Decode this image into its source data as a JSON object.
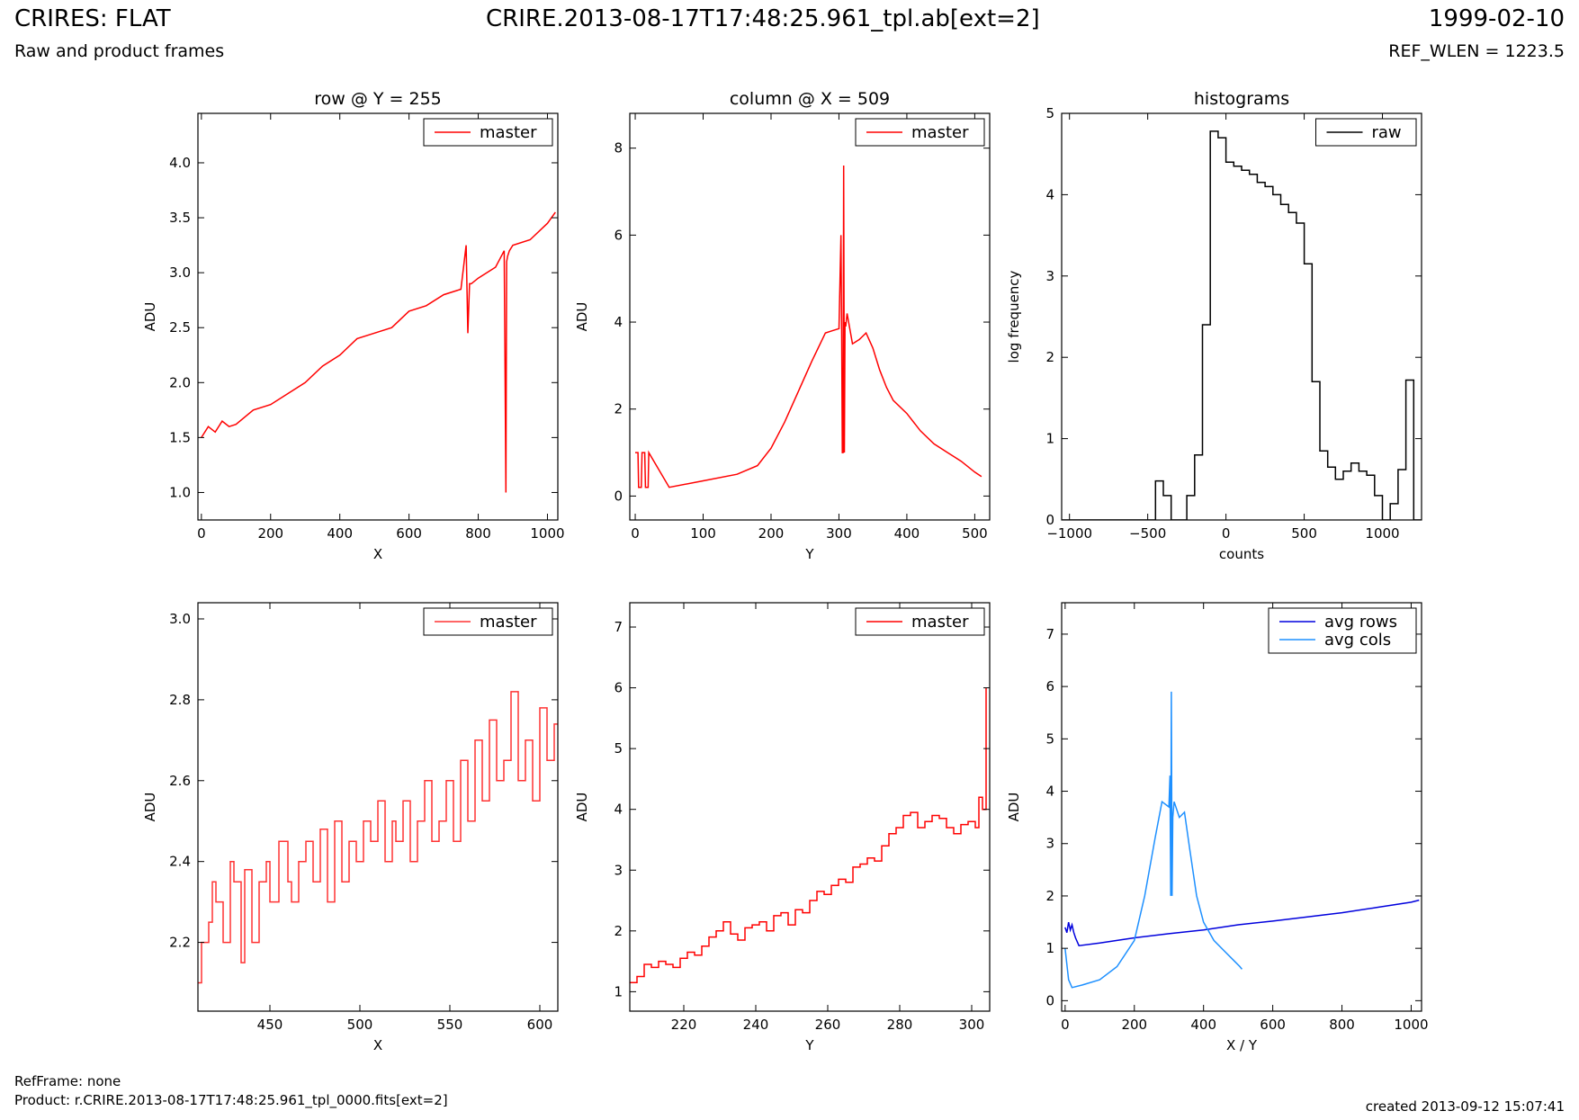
{
  "header": {
    "title": "CRIRES: FLAT",
    "subtitle": "Raw and product frames",
    "file": "CRIRE.2013-08-17T17:48:25.961_tpl.ab[ext=2]",
    "date": "1999-02-10",
    "ref_wlen": "REF_WLEN = 1223.5"
  },
  "footer": {
    "refframe": "RefFrame: none",
    "product": "Product: r.CRIRE.2013-08-17T17:48:25.961_tpl_0000.fits[ext=2]",
    "created": "created 2013-09-12 15:07:41"
  },
  "colors": {
    "master": "#ff0000",
    "master_zoom": "#ff3333",
    "raw": "#000000",
    "avg_rows": "#0000dd",
    "avg_cols": "#1e90ff"
  },
  "chart_data": [
    {
      "type": "line",
      "title": "row @ Y = 255",
      "xlabel": "X",
      "ylabel": "ADU",
      "xlim": [
        -10,
        1030
      ],
      "ylim": [
        0.75,
        4.45
      ],
      "xticks": [
        0,
        200,
        400,
        600,
        800,
        1000
      ],
      "yticks": [
        1.0,
        1.5,
        2.0,
        2.5,
        3.0,
        3.5,
        4.0
      ],
      "ytick_labels": [
        "1.0",
        "1.5",
        "2.0",
        "2.5",
        "3.0",
        "3.5",
        "4.0"
      ],
      "legend": "top-right",
      "series": [
        {
          "name": "master",
          "color": "#ff0000",
          "x": [
            0,
            20,
            40,
            60,
            80,
            100,
            150,
            200,
            250,
            300,
            350,
            400,
            450,
            500,
            550,
            600,
            650,
            700,
            750,
            765,
            770,
            775,
            780,
            800,
            850,
            875,
            880,
            882,
            885,
            890,
            900,
            950,
            1000,
            1023
          ],
          "y": [
            1.5,
            1.6,
            1.55,
            1.65,
            1.6,
            1.62,
            1.75,
            1.8,
            1.9,
            2.0,
            2.15,
            2.25,
            2.4,
            2.45,
            2.5,
            2.65,
            2.7,
            2.8,
            2.85,
            3.25,
            2.45,
            2.9,
            2.9,
            2.95,
            3.05,
            3.2,
            1.0,
            3.1,
            3.15,
            3.2,
            3.25,
            3.3,
            3.45,
            3.55
          ]
        }
      ]
    },
    {
      "type": "line",
      "title": "column @ X = 509",
      "xlabel": "Y",
      "ylabel": "ADU",
      "xlim": [
        -8,
        522
      ],
      "ylim": [
        -0.55,
        8.8
      ],
      "xticks": [
        0,
        100,
        200,
        300,
        400,
        500
      ],
      "yticks": [
        0,
        2,
        4,
        6,
        8
      ],
      "ytick_labels": [
        "0",
        "2",
        "4",
        "6",
        "8"
      ],
      "legend": "top-right",
      "series": [
        {
          "name": "master",
          "color": "#ff0000",
          "x": [
            0,
            4,
            5,
            9,
            10,
            14,
            15,
            19,
            20,
            50,
            100,
            150,
            180,
            200,
            220,
            240,
            260,
            280,
            290,
            300,
            303,
            304,
            305,
            306,
            307,
            308,
            309,
            310,
            312,
            320,
            330,
            340,
            350,
            360,
            370,
            380,
            400,
            420,
            440,
            460,
            480,
            500,
            510
          ],
          "y": [
            1.0,
            1.0,
            0.2,
            0.2,
            1.0,
            1.0,
            0.2,
            0.2,
            1.0,
            0.2,
            0.35,
            0.5,
            0.7,
            1.1,
            1.7,
            2.4,
            3.1,
            3.75,
            3.8,
            3.85,
            6.0,
            3.7,
            1.0,
            1.0,
            7.6,
            1.0,
            4.0,
            3.9,
            4.2,
            3.5,
            3.6,
            3.75,
            3.4,
            2.9,
            2.5,
            2.2,
            1.9,
            1.5,
            1.2,
            1.0,
            0.8,
            0.55,
            0.45
          ]
        }
      ]
    },
    {
      "type": "line",
      "title": "histograms",
      "xlabel": "counts",
      "ylabel": "log frequency",
      "xlim": [
        -1050,
        1250
      ],
      "ylim": [
        0,
        5
      ],
      "xticks": [
        -1000,
        -500,
        0,
        500,
        1000
      ],
      "xtick_labels": [
        "−1000",
        "−500",
        "0",
        "500",
        "1000"
      ],
      "yticks": [
        0,
        1,
        2,
        3,
        4,
        5
      ],
      "ytick_labels": [
        "0",
        "1",
        "2",
        "3",
        "4",
        "5"
      ],
      "legend": "top-right",
      "series": [
        {
          "name": "raw",
          "color": "#000000",
          "step": true,
          "x": [
            -1050,
            -450,
            -400,
            -350,
            -300,
            -250,
            -200,
            -150,
            -100,
            -50,
            0,
            50,
            100,
            150,
            200,
            250,
            300,
            350,
            400,
            450,
            500,
            550,
            600,
            650,
            700,
            750,
            800,
            850,
            900,
            950,
            1000,
            1050,
            1100,
            1150,
            1200,
            1250
          ],
          "y": [
            0,
            0.48,
            0.3,
            0,
            0,
            0.3,
            0.8,
            2.4,
            4.78,
            4.7,
            4.4,
            4.35,
            4.3,
            4.25,
            4.15,
            4.1,
            4.0,
            3.88,
            3.78,
            3.65,
            3.15,
            1.7,
            0.85,
            0.65,
            0.5,
            0.6,
            0.7,
            0.6,
            0.55,
            0.3,
            0,
            0.2,
            0.62,
            1.72,
            0,
            0
          ]
        }
      ]
    },
    {
      "type": "line",
      "title": "",
      "xlabel": "X",
      "ylabel": "ADU",
      "xlim": [
        410,
        610
      ],
      "ylim": [
        2.03,
        3.04
      ],
      "xticks": [
        450,
        500,
        550,
        600
      ],
      "yticks": [
        2.2,
        2.4,
        2.6,
        2.8,
        3.0
      ],
      "ytick_labels": [
        "2.2",
        "2.4",
        "2.6",
        "2.8",
        "3.0"
      ],
      "legend": "top-right",
      "series": [
        {
          "name": "master",
          "color": "#ff3333",
          "step": true,
          "x": [
            410,
            412,
            414,
            416,
            418,
            420,
            424,
            428,
            430,
            434,
            436,
            440,
            444,
            448,
            450,
            455,
            460,
            462,
            466,
            470,
            474,
            478,
            482,
            486,
            490,
            494,
            498,
            502,
            506,
            510,
            514,
            518,
            520,
            524,
            528,
            532,
            536,
            540,
            544,
            548,
            552,
            556,
            560,
            564,
            568,
            572,
            576,
            580,
            584,
            588,
            592,
            596,
            600,
            604,
            608,
            610
          ],
          "y": [
            2.1,
            2.2,
            2.2,
            2.25,
            2.35,
            2.3,
            2.2,
            2.4,
            2.35,
            2.15,
            2.38,
            2.2,
            2.35,
            2.4,
            2.3,
            2.45,
            2.35,
            2.3,
            2.4,
            2.45,
            2.35,
            2.48,
            2.3,
            2.5,
            2.35,
            2.45,
            2.4,
            2.5,
            2.45,
            2.55,
            2.4,
            2.5,
            2.45,
            2.55,
            2.4,
            2.5,
            2.6,
            2.45,
            2.5,
            2.6,
            2.45,
            2.65,
            2.5,
            2.7,
            2.55,
            2.75,
            2.6,
            2.65,
            2.82,
            2.6,
            2.7,
            2.55,
            2.78,
            2.65,
            2.74,
            2.74
          ]
        }
      ]
    },
    {
      "type": "line",
      "title": "",
      "xlabel": "Y",
      "ylabel": "ADU",
      "xlim": [
        205,
        305
      ],
      "ylim": [
        0.68,
        7.4
      ],
      "xticks": [
        220,
        240,
        260,
        280,
        300
      ],
      "yticks": [
        1,
        2,
        3,
        4,
        5,
        6,
        7
      ],
      "ytick_labels": [
        "1",
        "2",
        "3",
        "4",
        "5",
        "6",
        "7"
      ],
      "legend": "top-right",
      "series": [
        {
          "name": "master",
          "color": "#ff0000",
          "step": true,
          "x": [
            205,
            207,
            209,
            211,
            213,
            215,
            217,
            219,
            221,
            223,
            225,
            227,
            229,
            231,
            233,
            235,
            237,
            239,
            241,
            243,
            245,
            247,
            249,
            251,
            253,
            255,
            257,
            259,
            261,
            263,
            265,
            267,
            269,
            271,
            273,
            275,
            277,
            279,
            281,
            283,
            285,
            287,
            289,
            291,
            293,
            295,
            297,
            299,
            301,
            302,
            303,
            304
          ],
          "y": [
            1.15,
            1.25,
            1.45,
            1.4,
            1.5,
            1.45,
            1.4,
            1.55,
            1.65,
            1.6,
            1.75,
            1.9,
            2.0,
            2.15,
            1.95,
            1.85,
            2.05,
            2.1,
            2.15,
            2.0,
            2.25,
            2.3,
            2.1,
            2.35,
            2.3,
            2.5,
            2.65,
            2.6,
            2.75,
            2.85,
            2.8,
            3.05,
            3.1,
            3.2,
            3.15,
            3.4,
            3.6,
            3.7,
            3.9,
            3.95,
            3.7,
            3.8,
            3.9,
            3.85,
            3.7,
            3.6,
            3.75,
            3.8,
            3.7,
            4.2,
            4.0,
            6.0
          ]
        }
      ]
    },
    {
      "type": "line",
      "title": "",
      "xlabel": "X / Y",
      "ylabel": "ADU",
      "xlim": [
        -10,
        1030
      ],
      "ylim": [
        -0.2,
        7.6
      ],
      "xticks": [
        0,
        200,
        400,
        600,
        800,
        1000
      ],
      "yticks": [
        0,
        1,
        2,
        3,
        4,
        5,
        6,
        7
      ],
      "ytick_labels": [
        "0",
        "1",
        "2",
        "3",
        "4",
        "5",
        "6",
        "7"
      ],
      "legend": "top-right",
      "series": [
        {
          "name": "avg rows",
          "color": "#0000dd",
          "x": [
            0,
            5,
            10,
            15,
            20,
            25,
            30,
            40,
            100,
            200,
            300,
            400,
            500,
            600,
            700,
            800,
            900,
            1000,
            1023
          ],
          "y": [
            1.4,
            1.3,
            1.5,
            1.35,
            1.45,
            1.3,
            1.2,
            1.05,
            1.1,
            1.2,
            1.28,
            1.35,
            1.45,
            1.52,
            1.6,
            1.68,
            1.78,
            1.88,
            1.92
          ]
        },
        {
          "name": "avg cols",
          "color": "#1e90ff",
          "x": [
            0,
            10,
            20,
            50,
            100,
            150,
            200,
            230,
            260,
            280,
            300,
            303,
            305,
            307,
            309,
            311,
            315,
            330,
            345,
            360,
            380,
            400,
            430,
            460,
            490,
            505,
            511
          ],
          "y": [
            1.0,
            0.4,
            0.25,
            0.3,
            0.4,
            0.65,
            1.15,
            2.0,
            3.1,
            3.8,
            3.7,
            4.3,
            2.0,
            5.9,
            2.0,
            3.5,
            3.8,
            3.5,
            3.6,
            2.9,
            2.0,
            1.5,
            1.15,
            0.95,
            0.75,
            0.65,
            0.6
          ]
        }
      ]
    }
  ]
}
